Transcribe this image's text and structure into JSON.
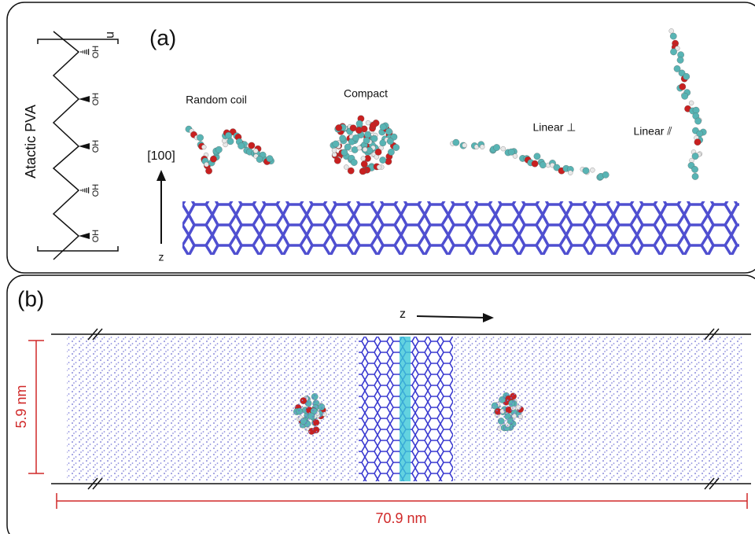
{
  "panel_a": {
    "label": "(a)",
    "structure": {
      "name": "Atactic PVA",
      "repeat": "n",
      "groups": [
        "OH",
        "OH",
        "OH",
        "OH",
        "OH"
      ]
    },
    "conformations": [
      "Random coil",
      "Compact",
      "Linear ⊥",
      "Linear ⫽"
    ],
    "direction": "[100]",
    "axis": "z"
  },
  "panel_b": {
    "label": "(b)",
    "axis": "z",
    "height": "5.9 nm",
    "length": "70.9 nm"
  }
}
